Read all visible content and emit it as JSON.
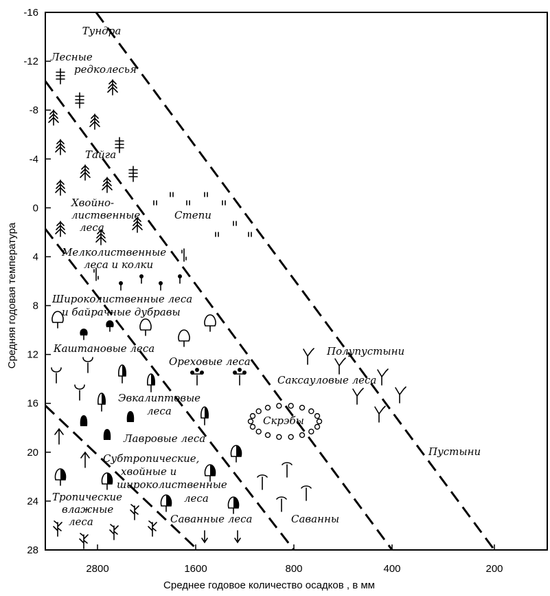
{
  "chart_data": {
    "type": "diagram-scatter",
    "title": "",
    "xlabel": "Среднее годовое количество осадков , в мм",
    "ylabel": "Средняя годовая температура",
    "x_ticks": [
      "2800",
      "1600",
      "800",
      "400",
      "200"
    ],
    "y_ticks": [
      "-16",
      "-12",
      "-8",
      "-4",
      "0",
      "4",
      "8",
      "12",
      "16",
      "20",
      "24",
      "28"
    ],
    "y_range": [
      -16,
      28
    ],
    "boundary_lines": 5,
    "zones": [
      {
        "id": "tundra",
        "lines": [
          "Тундра"
        ]
      },
      {
        "id": "forest-tundra",
        "lines": [
          "Лесные",
          "редколесья"
        ]
      },
      {
        "id": "taiga",
        "lines": [
          "Тайга"
        ]
      },
      {
        "id": "mixed",
        "lines": [
          "Хвойно-",
          "лиственные",
          "леса"
        ]
      },
      {
        "id": "steppe",
        "lines": [
          "Степи"
        ]
      },
      {
        "id": "small-leaved",
        "lines": [
          "Мелколиственные",
          "леса и колки"
        ]
      },
      {
        "id": "broad-leaved",
        "lines": [
          "Широколиственные леса",
          "и байрачные дубравы"
        ]
      },
      {
        "id": "chestnut",
        "lines": [
          "Каштановые леса"
        ]
      },
      {
        "id": "walnut",
        "lines": [
          "Ореховые леса"
        ]
      },
      {
        "id": "semi-desert",
        "lines": [
          "Полупустыни"
        ]
      },
      {
        "id": "saxaul",
        "lines": [
          "Саксауловые леса"
        ]
      },
      {
        "id": "eucalyptus",
        "lines": [
          "Эвкалиптовые",
          "леса"
        ]
      },
      {
        "id": "scrub",
        "lines": [
          "Скрэбы"
        ]
      },
      {
        "id": "laurel",
        "lines": [
          "Лавровые леса"
        ]
      },
      {
        "id": "subtropical",
        "lines": [
          "Субтропические,",
          "хвойные и",
          "широколиственные",
          "леса"
        ]
      },
      {
        "id": "desert",
        "lines": [
          "Пустыни"
        ]
      },
      {
        "id": "tropical",
        "lines": [
          "Тропические",
          "влажные",
          "леса"
        ]
      },
      {
        "id": "savanna-forest",
        "lines": [
          "Саванные леса"
        ]
      },
      {
        "id": "savanna",
        "lines": [
          "Саванны"
        ]
      }
    ],
    "icon_kinds": [
      "spruce",
      "fir",
      "birch",
      "broadleaf-tree",
      "chestnut",
      "walnut",
      "saxaul",
      "eucalyptus",
      "laurel",
      "cypress",
      "tropical-tree",
      "savanna-tree",
      "savanna-forest-arrow",
      "grass",
      "scrub-ring"
    ]
  }
}
